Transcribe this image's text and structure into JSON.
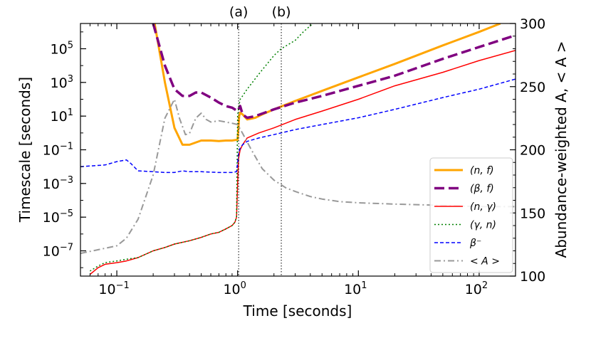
{
  "chart_data": {
    "type": "line",
    "xlabel": "Time [seconds]",
    "ylabel": "Timescale [seconds]",
    "y2label": "Abundance-weighted A,  < A >",
    "xscale": "log",
    "yscale": "log",
    "xlim": [
      0.05,
      200
    ],
    "ylim_log10": [
      -8.5,
      6.5
    ],
    "y2lim": [
      100,
      300
    ],
    "x_ticks": [
      {
        "value": 0.1,
        "label": "10",
        "exp": "−1"
      },
      {
        "value": 1,
        "label": "10",
        "exp": "0"
      },
      {
        "value": 10,
        "label": "10",
        "exp": "1"
      },
      {
        "value": 100,
        "label": "10",
        "exp": "2"
      }
    ],
    "y_ticks": [
      {
        "value": -7,
        "label": "10",
        "exp": "−7"
      },
      {
        "value": -5,
        "label": "10",
        "exp": "−5"
      },
      {
        "value": -3,
        "label": "10",
        "exp": "−3"
      },
      {
        "value": -1,
        "label": "10",
        "exp": "−1"
      },
      {
        "value": 1,
        "label": "10",
        "exp": "1"
      },
      {
        "value": 3,
        "label": "10",
        "exp": "3"
      },
      {
        "value": 5,
        "label": "10",
        "exp": "5"
      }
    ],
    "y2_ticks": [
      100,
      150,
      200,
      250,
      300
    ],
    "annotations": [
      {
        "label": "(a)",
        "x": 1.02
      },
      {
        "label": "(b)",
        "x": 2.3
      }
    ],
    "legend_position": "lower-right",
    "series": [
      {
        "name": "(n, f)",
        "axis": "left",
        "color": "#FFA500",
        "style": "solid",
        "width": 3,
        "x": [
          0.2,
          0.25,
          0.3,
          0.35,
          0.4,
          0.5,
          0.6,
          0.7,
          0.8,
          0.9,
          1.0,
          1.03,
          1.05,
          1.1,
          1.2,
          1.4,
          1.6,
          2,
          3,
          5,
          10,
          20,
          50,
          100,
          150
        ],
        "y": [
          7.0,
          3.0,
          0.3,
          -0.7,
          -0.7,
          -0.45,
          -0.45,
          -0.48,
          -0.45,
          -0.45,
          -0.4,
          1.0,
          1.2,
          1.1,
          0.8,
          0.9,
          1.1,
          1.4,
          1.9,
          2.5,
          3.3,
          4.1,
          5.2,
          6.0,
          6.5
        ]
      },
      {
        "name": "(β, f)",
        "axis": "left",
        "color": "#800080",
        "style": "dashed",
        "width": 3.5,
        "x": [
          0.2,
          0.25,
          0.3,
          0.35,
          0.4,
          0.45,
          0.5,
          0.6,
          0.7,
          0.8,
          0.9,
          1.0,
          1.05,
          1.1,
          1.2,
          1.4,
          2,
          3,
          5,
          10,
          20,
          50,
          100,
          200
        ],
        "y": [
          6.5,
          4.0,
          2.6,
          2.2,
          2.2,
          2.4,
          2.4,
          2.1,
          1.8,
          1.6,
          1.5,
          1.3,
          1.6,
          1.1,
          0.9,
          1.0,
          1.4,
          1.8,
          2.2,
          2.8,
          3.4,
          4.4,
          5.1,
          5.8
        ]
      },
      {
        "name": "(n, γ)",
        "axis": "left",
        "color": "#FF0000",
        "style": "solid",
        "width": 1.5,
        "x": [
          0.06,
          0.07,
          0.08,
          0.1,
          0.12,
          0.15,
          0.2,
          0.25,
          0.3,
          0.4,
          0.5,
          0.6,
          0.7,
          0.8,
          0.9,
          0.95,
          0.98,
          1.0,
          1.02,
          1.05,
          1.1,
          1.2,
          1.5,
          2,
          3,
          5,
          10,
          20,
          50,
          100,
          200
        ],
        "y": [
          -8.4,
          -8.0,
          -7.8,
          -7.7,
          -7.6,
          -7.4,
          -7.0,
          -6.8,
          -6.6,
          -6.4,
          -6.2,
          -6.0,
          -5.9,
          -5.7,
          -5.5,
          -5.3,
          -5.0,
          -3.0,
          -1.5,
          -1.0,
          -0.7,
          -0.3,
          0.0,
          0.3,
          0.8,
          1.3,
          2.0,
          2.8,
          3.6,
          4.3,
          4.9
        ]
      },
      {
        "name": "(γ, n)",
        "axis": "left",
        "color": "#008000",
        "style": "dotted",
        "width": 1.5,
        "x": [
          0.06,
          0.07,
          0.08,
          0.1,
          0.12,
          0.15,
          0.2,
          0.25,
          0.3,
          0.4,
          0.5,
          0.6,
          0.7,
          0.8,
          0.9,
          0.95,
          0.98,
          1.0,
          1.02,
          1.05,
          1.1,
          1.2,
          1.5,
          2,
          2.3,
          3,
          3.5,
          4.2
        ],
        "y": [
          -8.2,
          -7.9,
          -7.7,
          -7.6,
          -7.5,
          -7.4,
          -7.0,
          -6.8,
          -6.6,
          -6.4,
          -6.2,
          -6.0,
          -5.9,
          -5.7,
          -5.5,
          -5.3,
          -5.0,
          1.0,
          1.5,
          2.0,
          2.2,
          2.6,
          3.5,
          4.6,
          5.0,
          5.5,
          6.0,
          6.5
        ]
      },
      {
        "name": "β⁻",
        "axis": "left",
        "color": "#0000FF",
        "style": "dashed",
        "width": 1.5,
        "x": [
          0.05,
          0.08,
          0.1,
          0.12,
          0.13,
          0.15,
          0.2,
          0.25,
          0.3,
          0.35,
          0.4,
          0.5,
          0.7,
          0.9,
          0.98,
          1.0,
          1.02,
          1.05,
          1.1,
          1.2,
          1.5,
          2,
          3,
          5,
          10,
          20,
          50,
          100,
          200
        ],
        "y": [
          -2.0,
          -1.9,
          -1.7,
          -1.6,
          -1.8,
          -2.25,
          -2.3,
          -2.35,
          -2.35,
          -2.25,
          -2.3,
          -2.3,
          -2.35,
          -2.35,
          -2.3,
          -1.8,
          -1.2,
          -0.9,
          -0.7,
          -0.5,
          -0.3,
          -0.1,
          0.2,
          0.5,
          0.9,
          1.4,
          2.1,
          2.6,
          3.2
        ]
      },
      {
        "name": "< A >",
        "axis": "right",
        "color": "#999999",
        "style": "dashdot",
        "width": 2,
        "x": [
          0.05,
          0.08,
          0.1,
          0.12,
          0.15,
          0.2,
          0.25,
          0.3,
          0.33,
          0.37,
          0.4,
          0.45,
          0.5,
          0.55,
          0.6,
          0.7,
          0.8,
          0.9,
          1.0,
          1.1,
          1.3,
          1.6,
          2,
          2.5,
          3,
          4,
          5,
          7,
          10,
          20,
          50,
          100,
          200
        ],
        "y": [
          118,
          122,
          124,
          130,
          145,
          180,
          225,
          240,
          225,
          212,
          213,
          225,
          229,
          224,
          222,
          223,
          222,
          221,
          220,
          213,
          200,
          185,
          176,
          170,
          167,
          163,
          161,
          159,
          158,
          157,
          156,
          155,
          155
        ]
      }
    ]
  }
}
